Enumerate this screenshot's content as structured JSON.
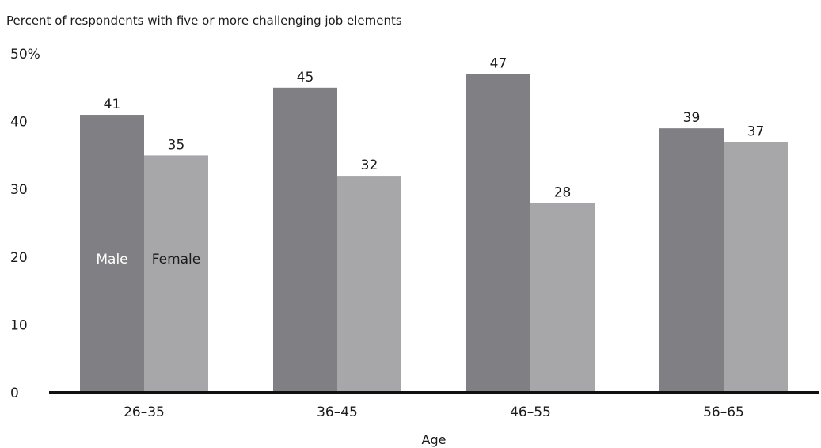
{
  "chart_data": {
    "type": "bar",
    "title": "Percent of respondents with five or more challenging job elements",
    "xlabel": "Age",
    "ylabel": "",
    "categories": [
      "26–35",
      "36–45",
      "46–55",
      "56–65"
    ],
    "series": [
      {
        "name": "Male",
        "values": [
          41,
          45,
          47,
          39
        ],
        "color": "#808084"
      },
      {
        "name": "Female",
        "values": [
          35,
          32,
          28,
          37
        ],
        "color": "#a7a7aa"
      }
    ],
    "ylim": [
      0,
      50
    ],
    "yticks": [
      {
        "value": 0,
        "label": "0"
      },
      {
        "value": 10,
        "label": "10"
      },
      {
        "value": 20,
        "label": "20"
      },
      {
        "value": 30,
        "label": "30"
      },
      {
        "value": 40,
        "label": "40"
      },
      {
        "value": 50,
        "label": "50%"
      }
    ],
    "grid": false,
    "legend": "inside first category bars",
    "colors": {
      "male": "#808084",
      "female": "#a7a7aa",
      "axis": "#111111",
      "male_label_text": "#ffffff",
      "female_label_text": "#1a1a1a"
    }
  }
}
